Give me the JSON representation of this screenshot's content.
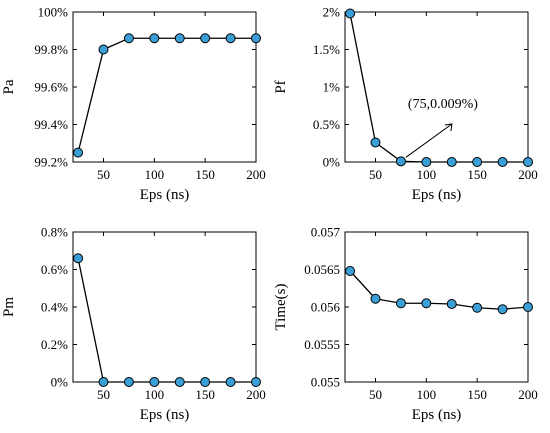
{
  "chart_data": [
    {
      "type": "line",
      "xlabel": "Eps (ns)",
      "ylabel": "Pa",
      "x": [
        25,
        50,
        75,
        100,
        125,
        150,
        175,
        200
      ],
      "values": [
        99.25,
        99.8,
        99.86,
        99.86,
        99.86,
        99.86,
        99.86,
        99.86
      ],
      "xlim": [
        20,
        200
      ],
      "ylim": [
        99.2,
        100
      ],
      "xticks": [
        "50",
        "100",
        "150",
        "200"
      ],
      "yticks": [
        "99.2%",
        "99.4%",
        "99.6%",
        "99.8%",
        "100%"
      ],
      "marker_color": "#3a9fd6"
    },
    {
      "type": "line",
      "xlabel": "Eps (ns)",
      "ylabel": "Pf",
      "x": [
        25,
        50,
        75,
        100,
        125,
        150,
        175,
        200
      ],
      "values": [
        1.98,
        0.26,
        0.009,
        0,
        0,
        0,
        0,
        0
      ],
      "xlim": [
        20,
        200
      ],
      "ylim": [
        0,
        2
      ],
      "xticks": [
        "50",
        "100",
        "150",
        "200"
      ],
      "yticks": [
        "0%",
        "0.5%",
        "1%",
        "1.5%",
        "2%"
      ],
      "annotation": {
        "text": "(75,0.009%)",
        "x": 75,
        "y": 0.009
      },
      "marker_color": "#3a9fd6"
    },
    {
      "type": "line",
      "xlabel": "Eps (ns)",
      "ylabel": "Pm",
      "x": [
        25,
        50,
        75,
        100,
        125,
        150,
        175,
        200
      ],
      "values": [
        0.66,
        0,
        0,
        0,
        0,
        0,
        0,
        0
      ],
      "xlim": [
        20,
        200
      ],
      "ylim": [
        0,
        0.8
      ],
      "xticks": [
        "50",
        "100",
        "150",
        "200"
      ],
      "yticks": [
        "0%",
        "0.2%",
        "0.4%",
        "0.6%",
        "0.8%"
      ],
      "marker_color": "#3a9fd6"
    },
    {
      "type": "line",
      "xlabel": "Eps (ns)",
      "ylabel": "Time(s)",
      "x": [
        25,
        50,
        75,
        100,
        125,
        150,
        175,
        200
      ],
      "values": [
        0.05648,
        0.05611,
        0.05605,
        0.05605,
        0.05604,
        0.05599,
        0.05597,
        0.056
      ],
      "xlim": [
        20,
        200
      ],
      "ylim": [
        0.055,
        0.057
      ],
      "xticks": [
        "50",
        "100",
        "150",
        "200"
      ],
      "yticks": [
        "0.055",
        "0.0555",
        "0.056",
        "0.0565",
        "0.057"
      ],
      "marker_color": "#3a9fd6"
    }
  ]
}
